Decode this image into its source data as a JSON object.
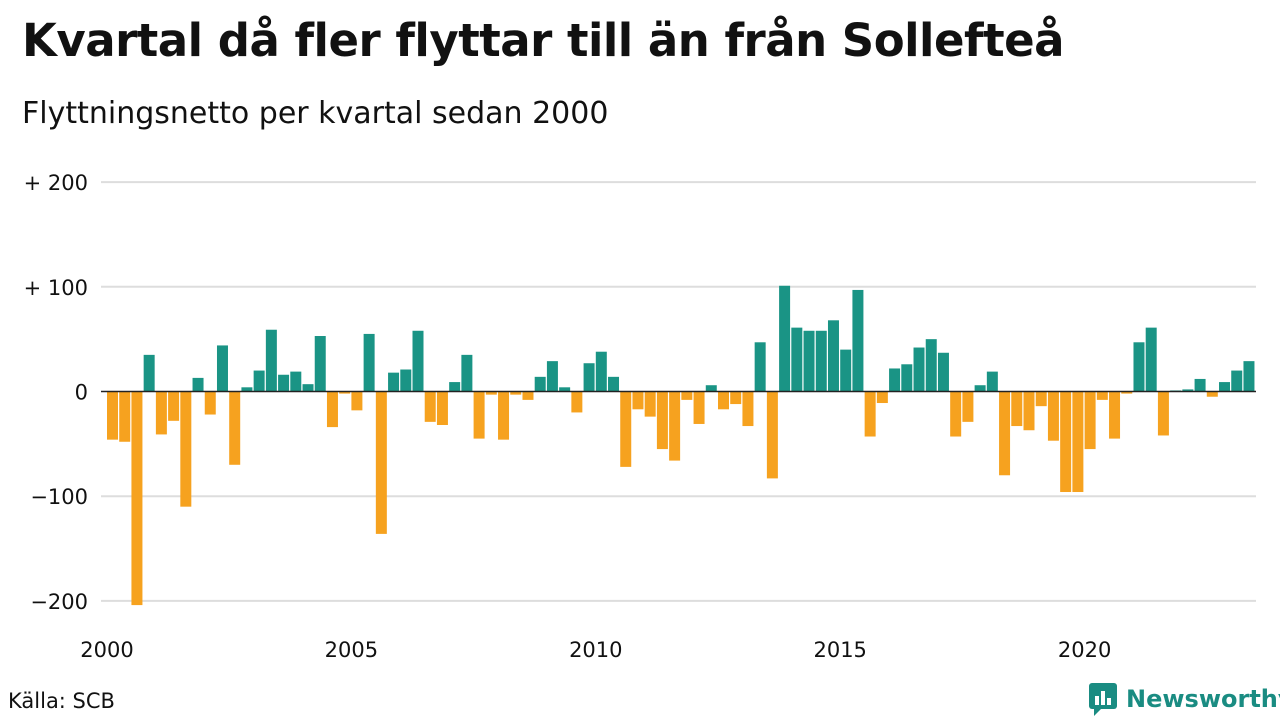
{
  "title": "Kvartal då fler flyttar till än från Sollefteå",
  "subtitle": "Flyttningsnetto per kvartal sedan 2000",
  "source": "Källa: SCB",
  "brand": "Newsworthy",
  "colors": {
    "positive": "#1a9485",
    "negative": "#f6a21f",
    "grid": "#dddddd",
    "brand": "#1a8c82"
  },
  "chart_data": {
    "type": "bar",
    "x_start": "2000 Q1",
    "x_tick_labels": [
      "2000",
      "2005",
      "2010",
      "2015",
      "2020"
    ],
    "y_tick_labels": [
      "+ 200",
      "+ 100",
      "0",
      "−100",
      "−200"
    ],
    "y_ticks": [
      200,
      100,
      0,
      -100,
      -200
    ],
    "ylim": [
      -205,
      200
    ],
    "grid": true,
    "values": [
      -46,
      -48,
      -204,
      35,
      -41,
      -28,
      -110,
      13,
      -22,
      44,
      -70,
      4,
      20,
      59,
      16,
      19,
      7,
      53,
      -34,
      -2,
      -18,
      55,
      -136,
      18,
      21,
      58,
      -29,
      -32,
      9,
      35,
      -45,
      -3,
      -46,
      -3,
      -8,
      14,
      29,
      4,
      -20,
      27,
      38,
      14,
      -72,
      -17,
      -24,
      -55,
      -66,
      -8,
      -31,
      6,
      -17,
      -12,
      -33,
      47,
      -83,
      101,
      61,
      58,
      58,
      68,
      40,
      97,
      -43,
      -11,
      22,
      26,
      42,
      50,
      37,
      -43,
      -29,
      6,
      19,
      -80,
      -33,
      -37,
      -14,
      -47,
      -96,
      -96,
      -55,
      -8,
      -45,
      -2,
      47,
      61,
      -42,
      1,
      2,
      12,
      -5,
      9,
      20,
      29
    ]
  }
}
